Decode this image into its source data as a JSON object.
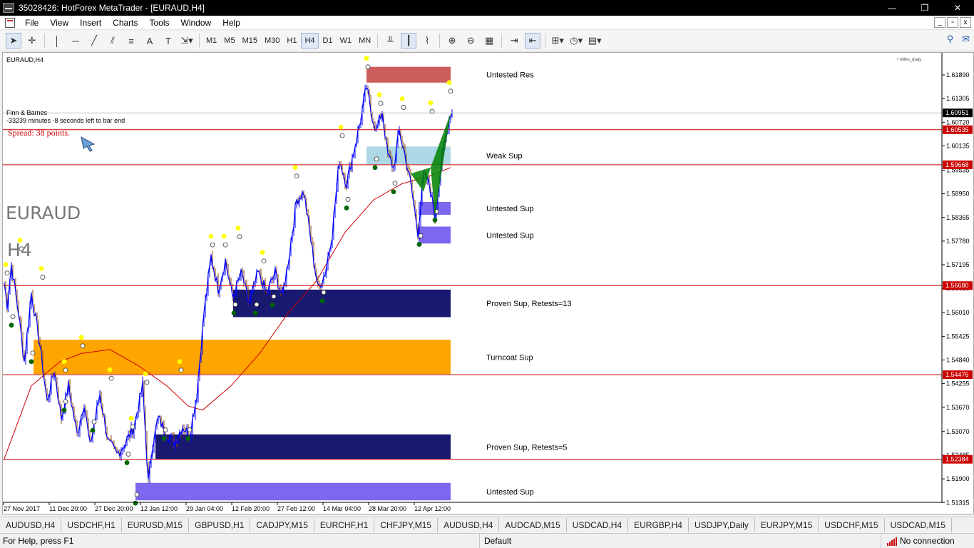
{
  "window": {
    "title": "35028426: HotForex MetaTrader - [EURAUD,H4]",
    "controls": [
      "—",
      "❐",
      "✕"
    ]
  },
  "menu": {
    "items": [
      "File",
      "View",
      "Insert",
      "Charts",
      "Tools",
      "Window",
      "Help"
    ],
    "mdi_controls": [
      "_",
      "▫",
      "x"
    ]
  },
  "toolbar": {
    "timeframes": [
      "M1",
      "M5",
      "M15",
      "M30",
      "H1",
      "H4",
      "D1",
      "W1",
      "MN"
    ],
    "active_timeframe": "H4",
    "icons": [
      "cursor-icon",
      "crosshair-icon",
      "vertical-line-icon",
      "horizontal-line-icon",
      "trendline-icon",
      "channel-icon",
      "fibonacci-icon",
      "text-icon",
      "label-icon",
      "shapes-icon"
    ]
  },
  "chart": {
    "symbol_label": "EURAUD,H4",
    "ind_top_right": "• miles_quay",
    "broker_text": "Finn & Barnes",
    "countdown_text": "-33239 minutes -8 seconds left to bar end",
    "spread_text": "Spread: 38 points.",
    "watermark_symbol": "EURAUD",
    "watermark_tf": "H4",
    "colors": {
      "bullish": "#0000ff",
      "bearish": "#8b4513",
      "ma": "#cc0000",
      "res_zone": "#cd5c5c",
      "weak_sup": "#add8e6",
      "untested_sup": "#7b68ee",
      "proven_sup": "#191970",
      "turncoat_sup": "#ffa500",
      "fractal_up": "#ffff00",
      "fractal_down": "#006400",
      "pattern": "#008000",
      "hline": "#cc0000"
    },
    "price_axis": {
      "ticks": [
        "1.61890",
        "1.61305",
        "1.60720",
        "1.60135",
        "1.59535",
        "1.58950",
        "1.58365",
        "1.57780",
        "1.57195",
        "1.56610",
        "1.56010",
        "1.55425",
        "1.54840",
        "1.54255",
        "1.53670",
        "1.53070",
        "1.52485",
        "1.51900",
        "1.51315"
      ],
      "current_price": "1.60951",
      "hline_labels": [
        "1.60535",
        "1.59668",
        "1.56680",
        "1.54476",
        "1.52384"
      ]
    },
    "time_axis": [
      "27 Nov 2017",
      "11 Dec 20:00",
      "27 Dec 20:00",
      "12 Jan 12:00",
      "29 Jan 04:00",
      "12 Feb 20:00",
      "27 Feb 12:00",
      "14 Mar 04:00",
      "28 Mar 20:00",
      "12 Apr 12:00"
    ],
    "zones": [
      {
        "label": "Untested Res",
        "top": 1.6209,
        "bottom": 1.617,
        "color": "res_zone"
      },
      {
        "label": "Weak Sup",
        "top": 1.6012,
        "bottom": 1.5968,
        "color": "weak_sup"
      },
      {
        "label": "Untested Sup",
        "top": 1.5875,
        "bottom": 1.5843,
        "color": "untested_sup"
      },
      {
        "label": "Untested Sup",
        "top": 1.5814,
        "bottom": 1.5772,
        "color": "untested_sup"
      },
      {
        "label": "Proven Sup, Retests=13",
        "top": 1.5658,
        "bottom": 1.559,
        "color": "proven_sup"
      },
      {
        "label": "Turncoat Sup",
        "top": 1.5534,
        "bottom": 1.5449,
        "color": "turncoat_sup"
      },
      {
        "label": "Proven Sup, Retests=5",
        "top": 1.53,
        "bottom": 1.5238,
        "color": "proven_sup"
      },
      {
        "label": "Untested Sup",
        "top": 1.518,
        "bottom": 1.5137,
        "color": "untested_sup"
      }
    ]
  },
  "tabs": [
    "AUDUSD,H4",
    "USDCHF,H1",
    "EURUSD,M15",
    "GBPUSD,H1",
    "CADJPY,M15",
    "EURCHF,H1",
    "CHFJPY,M15",
    "AUDUSD,H4",
    "AUDCAD,M15",
    "USDCAD,H4",
    "EURGBP,H4",
    "USDJPY,Daily",
    "EURJPY,M15",
    "USDCHF,M15",
    "USDCAD,M15"
  ],
  "status": {
    "help": "For Help, press F1",
    "profile": "Default",
    "connection": "No connection"
  }
}
